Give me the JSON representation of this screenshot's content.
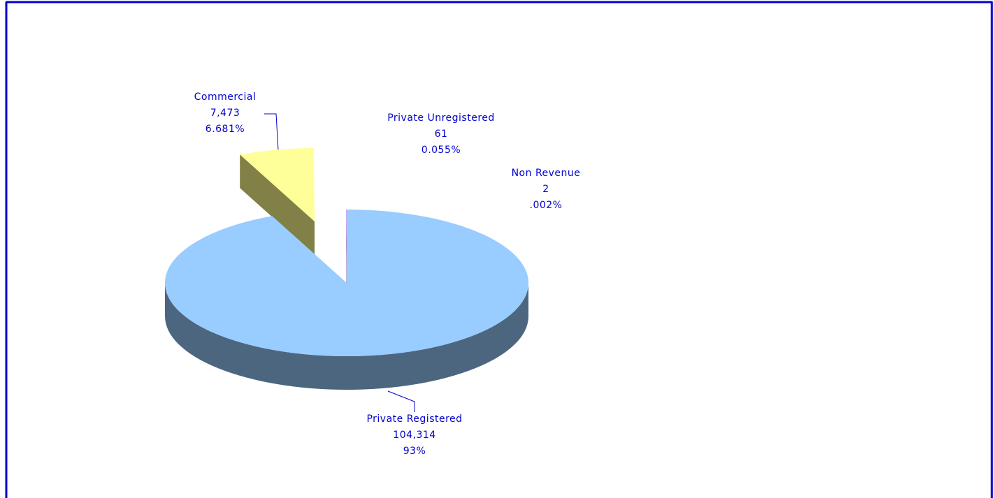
{
  "chart_data": {
    "type": "pie",
    "categories": [
      "Private Registered",
      "Commercial",
      "Private Unregistered",
      "Non Revenue"
    ],
    "values": [
      104314,
      7473,
      61,
      2
    ],
    "value_labels": [
      "104,314",
      "7,473",
      "61",
      "2"
    ],
    "percents": [
      93,
      6.681,
      0.055,
      0.002
    ],
    "percent_labels": [
      "93%",
      "6.681%",
      "0.055%",
      ".002%"
    ],
    "colors": [
      "#99ccff",
      "#ffff99",
      "#cc99ff",
      "#ff9999"
    ],
    "side_colors": [
      "#4d6680",
      "#808047",
      "#66507f",
      "#804d4d"
    ]
  }
}
